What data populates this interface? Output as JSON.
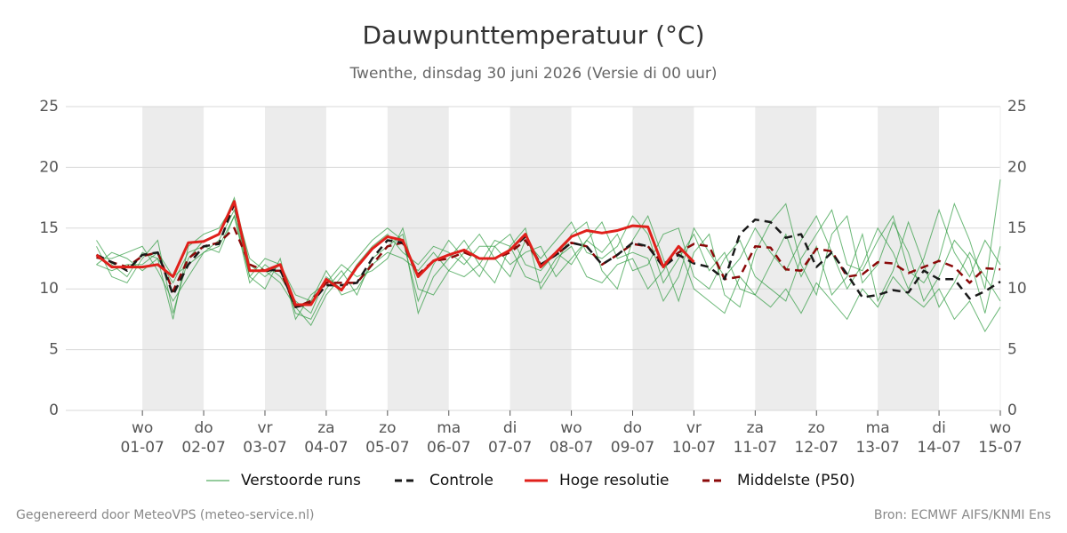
{
  "chart_data": {
    "type": "line",
    "title": "Dauwpunttemperatuur (°C)",
    "subtitle": "Twenthe, dinsdag 30 juni 2026 (Versie di 00 uur)",
    "footer_left": "Gegenereerd door MeteoVPS (meteo-service.nl)",
    "footer_right": "Bron: ECMWF AIFS/KNMI Ens",
    "x": [
      0.25,
      0.5,
      0.75,
      1,
      1.25,
      1.5,
      1.75,
      2,
      2.25,
      2.5,
      2.75,
      3,
      3.25,
      3.5,
      3.75,
      4,
      4.25,
      4.5,
      4.75,
      5,
      5.25,
      5.5,
      5.75,
      6,
      6.25,
      6.5,
      6.75,
      7,
      7.25,
      7.5,
      7.75,
      8,
      8.25,
      8.5,
      8.75,
      9,
      9.25,
      9.5,
      9.75,
      10,
      10.25,
      10.5,
      10.75,
      11,
      11.25,
      11.5,
      11.75,
      12,
      12.25,
      12.5,
      12.75,
      13,
      13.25,
      13.5,
      13.75,
      14,
      14.25,
      14.5,
      14.75,
      15
    ],
    "xlim": [
      -0.25,
      15
    ],
    "xticks": [
      {
        "value": 1,
        "label": "01-07"
      },
      {
        "value": 2,
        "label": "02-07"
      },
      {
        "value": 3,
        "label": "03-07"
      },
      {
        "value": 4,
        "label": "04-07"
      },
      {
        "value": 5,
        "label": "05-07"
      },
      {
        "value": 6,
        "label": "06-07"
      },
      {
        "value": 7,
        "label": "07-07"
      },
      {
        "value": 8,
        "label": "08-07"
      },
      {
        "value": 9,
        "label": "09-07"
      },
      {
        "value": 10,
        "label": "10-07"
      },
      {
        "value": 11,
        "label": "11-07"
      },
      {
        "value": 12,
        "label": "12-07"
      },
      {
        "value": 13,
        "label": "13-07"
      },
      {
        "value": 14,
        "label": "14-07"
      },
      {
        "value": 15,
        "label": "15-07"
      }
    ],
    "xtick_weekdays": [
      "wo",
      "do",
      "vr",
      "za",
      "zo",
      "ma",
      "di",
      "wo",
      "do",
      "vr",
      "za",
      "zo",
      "ma",
      "di",
      "wo"
    ],
    "ylim": [
      0,
      25
    ],
    "yticks": [
      0,
      5,
      10,
      15,
      20,
      25
    ],
    "grid": true,
    "ensemble": {
      "name": "Verstoorde runs",
      "color": "#2e9a3e",
      "runs": [
        [
          13.5,
          11.0,
          10.5,
          12.5,
          14.0,
          8.0,
          12.5,
          14.0,
          14.5,
          17.5,
          12.0,
          11.0,
          12.0,
          8.0,
          7.5,
          10.0,
          11.5,
          9.5,
          12.5,
          13.5,
          14.5,
          8.0,
          11.0,
          12.5,
          14.0,
          12.0,
          10.5,
          13.5,
          15.0,
          10.0,
          12.0,
          14.5,
          15.5,
          11.5,
          10.0,
          14.0,
          16.0,
          12.5,
          9.0,
          13.0,
          14.5,
          9.5,
          8.5,
          13.0,
          15.5,
          17.0,
          12.0,
          9.5,
          14.5,
          16.0,
          10.5,
          12.0,
          15.5,
          13.0,
          9.0,
          11.0,
          14.0,
          12.5,
          8.0,
          13.5
        ],
        [
          12.0,
          13.0,
          12.5,
          11.5,
          12.5,
          10.5,
          13.0,
          13.5,
          13.0,
          16.0,
          10.5,
          12.0,
          11.0,
          9.0,
          8.0,
          11.0,
          10.0,
          12.0,
          13.5,
          14.5,
          13.0,
          12.0,
          13.5,
          13.0,
          12.0,
          13.5,
          13.5,
          12.0,
          13.0,
          13.5,
          11.0,
          12.5,
          14.0,
          13.0,
          14.5,
          11.5,
          12.0,
          14.5,
          15.0,
          11.0,
          10.0,
          12.5,
          14.0,
          11.0,
          10.0,
          9.0,
          12.5,
          14.5,
          16.5,
          12.0,
          11.5,
          14.0,
          16.0,
          11.5,
          10.5,
          12.5,
          17.0,
          14.0,
          10.0,
          19.0
        ],
        [
          12.5,
          12.5,
          13.0,
          13.5,
          11.5,
          9.0,
          11.0,
          13.0,
          14.0,
          16.5,
          11.0,
          10.0,
          12.5,
          7.5,
          9.5,
          10.5,
          12.0,
          11.0,
          11.5,
          12.5,
          15.0,
          10.0,
          9.5,
          11.5,
          13.0,
          14.5,
          12.5,
          11.0,
          14.0,
          12.5,
          14.0,
          15.5,
          13.0,
          12.5,
          13.5,
          16.0,
          14.5,
          10.5,
          12.5,
          14.5,
          11.5,
          13.0,
          10.0,
          9.5,
          12.0,
          14.5,
          11.0,
          13.5,
          9.5,
          11.0,
          14.5,
          9.0,
          11.5,
          15.5,
          12.0,
          8.5,
          10.5,
          13.0,
          11.0,
          9.0
        ],
        [
          14.0,
          12.0,
          11.0,
          13.0,
          12.5,
          7.5,
          13.5,
          14.5,
          15.0,
          17.0,
          12.5,
          11.5,
          10.5,
          8.5,
          7.0,
          9.5,
          11.0,
          12.5,
          14.0,
          15.0,
          14.0,
          9.0,
          12.0,
          14.0,
          12.5,
          11.0,
          13.5,
          14.5,
          12.0,
          11.5,
          13.0,
          12.0,
          14.0,
          15.5,
          12.5,
          13.0,
          12.5,
          9.0,
          11.0,
          15.0,
          13.0,
          11.0,
          12.5,
          15.0,
          13.0,
          11.5,
          14.0,
          16.0,
          13.0,
          10.0,
          12.0,
          15.0,
          13.0,
          10.0,
          12.5,
          16.5,
          13.0,
          11.0,
          14.0,
          12.0
        ],
        [
          12.0,
          11.5,
          12.0,
          12.0,
          13.0,
          11.0,
          12.0,
          13.0,
          13.5,
          16.0,
          11.0,
          12.5,
          12.0,
          9.5,
          9.0,
          11.5,
          9.5,
          10.0,
          12.0,
          13.0,
          12.5,
          11.5,
          13.0,
          11.5,
          11.0,
          12.0,
          14.0,
          13.5,
          11.0,
          10.5,
          12.5,
          13.5,
          11.0,
          10.5,
          12.0,
          12.5,
          10.0,
          11.5,
          13.5,
          10.0,
          9.0,
          8.0,
          11.0,
          9.5,
          8.5,
          10.0,
          8.0,
          10.5,
          9.0,
          7.5,
          10.0,
          8.5,
          11.0,
          9.5,
          8.5,
          10.0,
          7.5,
          9.0,
          6.5,
          8.5
        ]
      ]
    },
    "series": [
      {
        "name": "Controle",
        "color": "#1a1a1a",
        "dash": true,
        "values": [
          12.8,
          12.2,
          11.5,
          12.8,
          13.0,
          9.5,
          12.0,
          13.5,
          13.7,
          17.0,
          11.5,
          11.5,
          11.6,
          8.5,
          8.8,
          10.3,
          10.3,
          10.5,
          12.5,
          14.0,
          13.8,
          11.0,
          12.3,
          12.8,
          13.2,
          12.5,
          12.5,
          13.2,
          14.3,
          12.0,
          12.8,
          13.8,
          13.5,
          12.0,
          12.8,
          13.8,
          13.5,
          11.8,
          12.8,
          12.1,
          11.8,
          10.8,
          14.5,
          15.7,
          15.5,
          14.2,
          14.5,
          11.8,
          13.0,
          11.2,
          9.3,
          9.5,
          9.9,
          9.7,
          11.5,
          10.8,
          10.8,
          9.2,
          9.8,
          10.6
        ]
      },
      {
        "name": "Hoge resolutie",
        "color": "#e0201b",
        "dash": false,
        "values": [
          12.8,
          11.8,
          11.8,
          11.8,
          12.0,
          11.0,
          13.8,
          13.9,
          14.5,
          17.2,
          11.5,
          11.5,
          12.0,
          8.7,
          8.7,
          10.8,
          9.9,
          11.8,
          13.3,
          14.3,
          14.0,
          11.0,
          12.3,
          12.8,
          13.2,
          12.5,
          12.5,
          13.2,
          14.5,
          11.8,
          13.0,
          14.3,
          14.8,
          14.6,
          14.8,
          15.2,
          15.1,
          11.8,
          13.5,
          12.2,
          null,
          null,
          null,
          null,
          null,
          null,
          null,
          null,
          null,
          null,
          null,
          null,
          null,
          null,
          null,
          null,
          null,
          null,
          null,
          null
        ]
      },
      {
        "name": "Middelste (P50)",
        "color": "#8b0a0a",
        "dash": true,
        "values": [
          12.6,
          12.2,
          11.8,
          12.7,
          13.0,
          9.8,
          12.5,
          13.5,
          13.8,
          15.0,
          12.0,
          11.5,
          11.5,
          8.5,
          9.0,
          10.5,
          10.5,
          10.5,
          12.0,
          13.5,
          13.8,
          11.2,
          12.3,
          12.5,
          13.0,
          12.5,
          12.5,
          13.0,
          14.0,
          12.0,
          12.8,
          13.8,
          13.5,
          12.0,
          12.8,
          13.7,
          13.5,
          12.0,
          13.0,
          13.7,
          13.5,
          10.8,
          11.0,
          13.5,
          13.4,
          11.6,
          11.5,
          13.3,
          13.1,
          11.0,
          11.2,
          12.2,
          12.1,
          11.3,
          11.8,
          12.3,
          11.8,
          10.5,
          11.7,
          11.6
        ]
      }
    ]
  }
}
